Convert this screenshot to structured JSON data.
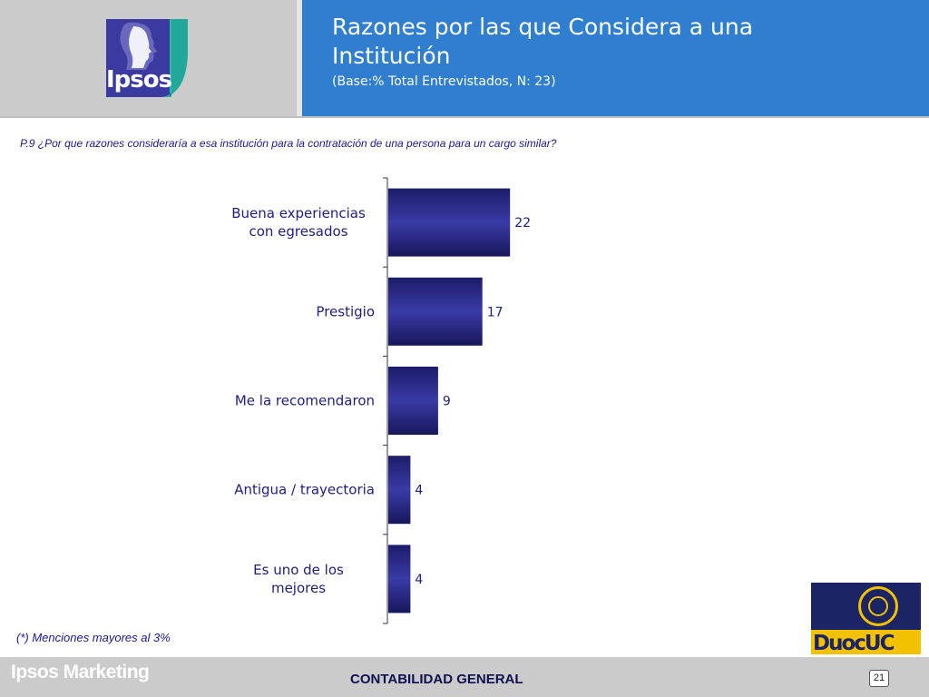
{
  "header": {
    "logo_text": "Ipsos",
    "title": "Razones por las que Considera a una Institución",
    "subtitle": "(Base:% Total Entrevistados, N: 23)"
  },
  "question": "P.9 ¿Por que razones consideraría a esa institución para la contratación de una persona para un cargo similar?",
  "chart_data": {
    "type": "bar",
    "orientation": "horizontal",
    "categories": [
      "Buena experiencias con egresados",
      "Prestigio",
      "Me la recomendaron",
      "Antigua / trayectoria",
      "Es uno de los mejores"
    ],
    "category_lines": [
      [
        "Buena experiencias",
        "con egresados"
      ],
      [
        "Prestigio"
      ],
      [
        "Me la recomendaron"
      ],
      [
        "Antigua / trayectoria"
      ],
      [
        "Es uno de los",
        "mejores"
      ]
    ],
    "values": [
      22,
      17,
      9,
      4,
      4
    ],
    "value_labels": [
      "22",
      "17",
      "9",
      "4",
      "4"
    ],
    "bar_color": "#1f1f6e",
    "title": "",
    "xlabel": "",
    "ylabel": ""
  },
  "footnote": "(*) Menciones mayores al 3%",
  "footer": {
    "brand": "Ipsos Marketing",
    "center_text": "CONTABILIDAD GENERAL",
    "page_number": "21",
    "partner_logo_text": "DuocUC"
  },
  "colors": {
    "header_blue": "#2f7ed0",
    "header_gray": "#cbcbcb",
    "text_navy": "#1a1a8c",
    "duoc_navy": "#1c2466",
    "duoc_yellow": "#f2c200"
  }
}
